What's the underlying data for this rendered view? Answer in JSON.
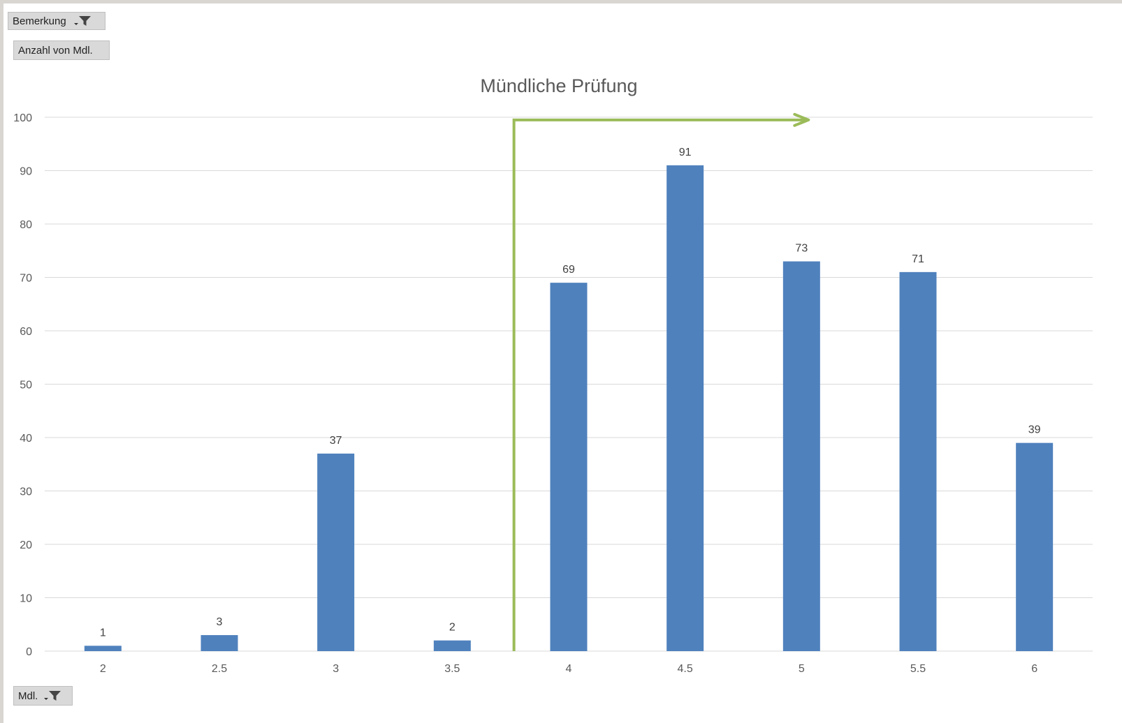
{
  "filters": {
    "page_filter_label": "Bemerkung",
    "values_field_label": "Anzahl von Mdl.",
    "axis_field_label": "Mdl."
  },
  "icons": {
    "filter": "funnel-dropdown-icon"
  },
  "colors": {
    "bar": "#4f81bd",
    "arrow": "#9bbb59",
    "grid": "#d9d9d9"
  },
  "chart_data": {
    "type": "bar",
    "title": "Mündliche Prüfung",
    "xlabel": "",
    "ylabel": "",
    "categories": [
      "2",
      "2.5",
      "3",
      "3.5",
      "4",
      "4.5",
      "5",
      "5.5",
      "6"
    ],
    "values": [
      1,
      3,
      37,
      2,
      69,
      91,
      73,
      71,
      39
    ],
    "ylim": [
      0,
      100
    ],
    "yticks": [
      0,
      10,
      20,
      30,
      40,
      50,
      60,
      70,
      80,
      90,
      100
    ],
    "grid": true,
    "data_labels": true,
    "legend": "none"
  }
}
